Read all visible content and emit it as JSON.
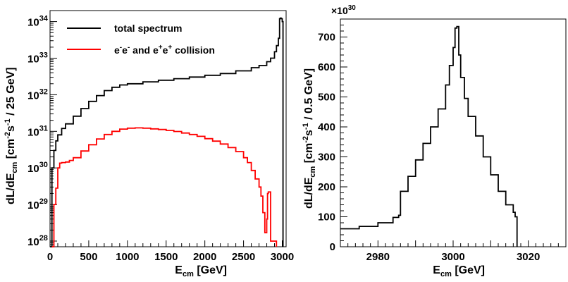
{
  "chart_data": [
    {
      "type": "line",
      "panel": "left",
      "xlabel": "E_cm [GeV]",
      "xlabel_main": "E",
      "xlabel_sub": "cm",
      "xlabel_unit": " [GeV]",
      "ylabel_parts": [
        "dL/dE",
        "cm",
        " [cm",
        "-2",
        "s",
        "-1",
        " / 25 GeV]"
      ],
      "xlim": [
        0,
        3050
      ],
      "ylim": [
        7e+27,
        2e+34
      ],
      "yscale": "log",
      "x_ticks": [
        "0",
        "500",
        "1000",
        "1500",
        "2000",
        "2500",
        "3000"
      ],
      "x_tick_values": [
        0,
        500,
        1000,
        1500,
        2000,
        2500,
        3000
      ],
      "y_ticks": [
        {
          "base": "10",
          "exp": "28"
        },
        {
          "base": "10",
          "exp": "29"
        },
        {
          "base": "10",
          "exp": "30"
        },
        {
          "base": "10",
          "exp": "31"
        },
        {
          "base": "10",
          "exp": "32"
        },
        {
          "base": "10",
          "exp": "33"
        },
        {
          "base": "10",
          "exp": "34"
        }
      ],
      "y_tick_values": [
        1e+28,
        1e+29,
        1e+30,
        1e+31,
        1e+32,
        1e+33,
        1e+34
      ],
      "legend_position": "top-left",
      "series": [
        {
          "name": "total spectrum",
          "color": "#000000",
          "x": [
            0,
            25,
            50,
            75,
            100,
            150,
            200,
            300,
            400,
            500,
            600,
            700,
            800,
            900,
            1000,
            1200,
            1400,
            1600,
            1800,
            2000,
            2200,
            2400,
            2600,
            2700,
            2800,
            2850,
            2900,
            2925,
            2950,
            2965,
            2975,
            2985,
            3000,
            3010
          ],
          "y": [
            7e+27,
            1e+30,
            3e+30,
            5.5e+30,
            8e+30,
            1.2e+31,
            1.6e+31,
            2.6e+31,
            4.2e+31,
            6.6e+31,
            9.5e+31,
            1.3e+32,
            1.6e+32,
            1.85e+32,
            2e+32,
            2.25e+32,
            2.5e+32,
            2.75e+32,
            3.05e+32,
            3.4e+32,
            3.8e+32,
            4.5e+32,
            5.5e+32,
            6.3e+32,
            8e+32,
            1e+33,
            1.5e+33,
            2.2e+33,
            3.5e+33,
            1.2e+34,
            1.25e+34,
            1.2e+34,
            1e+34,
            7e+27
          ]
        },
        {
          "name_parts": [
            "e",
            "-",
            "e",
            "-",
            " and e",
            "+",
            "e",
            "+",
            " collision"
          ],
          "color": "#ff0000",
          "x": [
            25,
            50,
            75,
            100,
            125,
            150,
            200,
            250,
            300,
            400,
            500,
            600,
            700,
            800,
            900,
            1000,
            1100,
            1200,
            1300,
            1400,
            1500,
            1600,
            1700,
            1800,
            1900,
            2000,
            2100,
            2200,
            2300,
            2400,
            2500,
            2550,
            2600,
            2650,
            2700,
            2725,
            2750,
            2775,
            2800,
            2810,
            2820,
            2850,
            2900,
            2925
          ],
          "y": [
            7e+27,
            1e+29,
            2.8e+29,
            1e+30,
            1.35e+30,
            1.4e+30,
            1.45e+30,
            1.6e+30,
            1.9e+30,
            2.9e+30,
            4.3e+30,
            6.2e+30,
            8.2e+30,
            1e+31,
            1.15e+31,
            1.22e+31,
            1.24e+31,
            1.22e+31,
            1.17e+31,
            1.12e+31,
            1.06e+31,
            9.9e+30,
            9e+30,
            8.2e+30,
            7.3e+30,
            6.3e+30,
            5.4e+30,
            4.5e+30,
            3.6e+30,
            2.8e+30,
            1.9e+30,
            1.4e+30,
            8.5e+29,
            5e+29,
            3e+29,
            1.7e+29,
            6e+28,
            1.7e+28,
            4e+28,
            2e+29,
            2.2e+29,
            1e+28,
            1e+28,
            7e+27
          ]
        }
      ]
    },
    {
      "type": "line",
      "panel": "right",
      "xlabel": "E_cm [GeV]",
      "xlabel_main": "E",
      "xlabel_sub": "cm",
      "xlabel_unit": " [GeV]",
      "ylabel_parts": [
        "dL/dE",
        "cm",
        " [cm",
        "-2",
        "s",
        "-1",
        " / 0.5 GeV]"
      ],
      "scale_label": {
        "base": "×10",
        "exp": "30"
      },
      "xlim": [
        2970,
        3030
      ],
      "ylim": [
        0,
        760
      ],
      "x_ticks": [
        "2980",
        "3000",
        "3020"
      ],
      "x_tick_values": [
        2980,
        3000,
        3020
      ],
      "y_ticks": [
        "0",
        "100",
        "200",
        "300",
        "400",
        "500",
        "600",
        "700"
      ],
      "y_tick_values": [
        0,
        100,
        200,
        300,
        400,
        500,
        600,
        700
      ],
      "series": [
        {
          "color": "#000000",
          "x": [
            2970,
            2975,
            2980,
            2984,
            2985.5,
            2986,
            2988,
            2990,
            2992,
            2994,
            2996,
            2998,
            2999,
            3000,
            3000.5,
            3001,
            3001.5,
            3002,
            3003,
            3004,
            3006,
            3008,
            3010,
            3012,
            3014,
            3016,
            3016.5,
            3017
          ],
          "y": [
            60,
            68,
            80,
            98,
            105,
            185,
            235,
            290,
            345,
            400,
            460,
            540,
            605,
            665,
            730,
            735,
            640,
            565,
            495,
            435,
            370,
            300,
            240,
            185,
            140,
            115,
            100,
            0
          ]
        }
      ]
    }
  ]
}
